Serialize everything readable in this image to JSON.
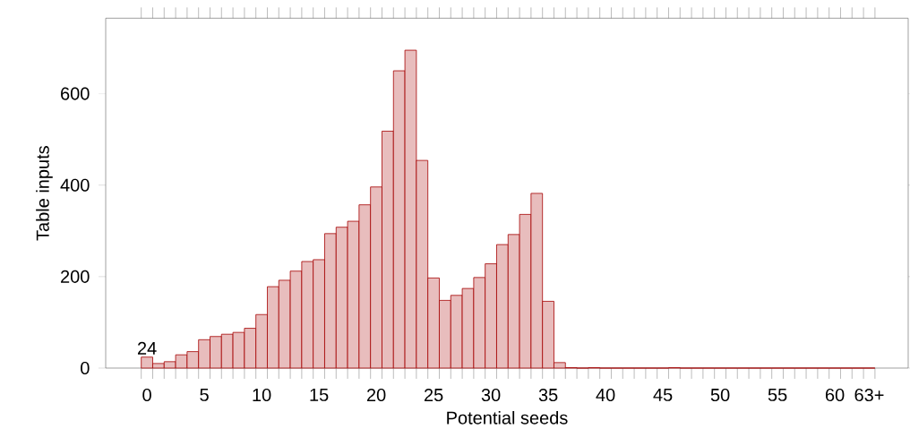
{
  "chart_data": {
    "type": "bar",
    "xlabel": "Potential seeds",
    "ylabel": "Table inputs",
    "categories": [
      "0",
      null,
      null,
      null,
      null,
      "5",
      null,
      null,
      null,
      null,
      "10",
      null,
      null,
      null,
      null,
      "15",
      null,
      null,
      null,
      null,
      "20",
      null,
      null,
      null,
      null,
      "25",
      null,
      null,
      null,
      null,
      "30",
      null,
      null,
      null,
      null,
      "35",
      null,
      null,
      null,
      null,
      "40",
      null,
      null,
      null,
      null,
      "45",
      null,
      null,
      null,
      null,
      "50",
      null,
      null,
      null,
      null,
      "55",
      null,
      null,
      null,
      null,
      "60",
      null,
      null,
      "63+"
    ],
    "values": [
      24,
      10,
      14,
      29,
      36,
      62,
      69,
      74,
      78,
      87,
      117,
      178,
      192,
      212,
      233,
      237,
      294,
      308,
      321,
      357,
      396,
      518,
      650,
      695,
      454,
      197,
      148,
      159,
      174,
      198,
      228,
      270,
      292,
      336,
      382,
      146,
      12,
      1,
      0,
      1,
      0,
      0,
      0,
      0,
      0,
      0,
      1,
      0,
      0,
      0,
      0,
      0,
      0,
      0,
      0,
      0,
      0,
      0,
      0,
      0,
      0,
      0,
      0,
      0
    ],
    "value_labels": [
      "24",
      null,
      null,
      null,
      null,
      null,
      null,
      null,
      null,
      null,
      null,
      null,
      null,
      null,
      null,
      null,
      null,
      null,
      null,
      null,
      null,
      null,
      null,
      null,
      null,
      null,
      null,
      null,
      null,
      null,
      null,
      null,
      null,
      null,
      null,
      null,
      null,
      null,
      null,
      null,
      null,
      null,
      null,
      null,
      null,
      null,
      null,
      null,
      null,
      null,
      null,
      null,
      null,
      null,
      null,
      null,
      null,
      null,
      null,
      null,
      null,
      null,
      null,
      null
    ],
    "color": "#a50000",
    "ylim": [
      0,
      765
    ],
    "yticks": [
      0,
      200,
      400,
      600
    ]
  }
}
